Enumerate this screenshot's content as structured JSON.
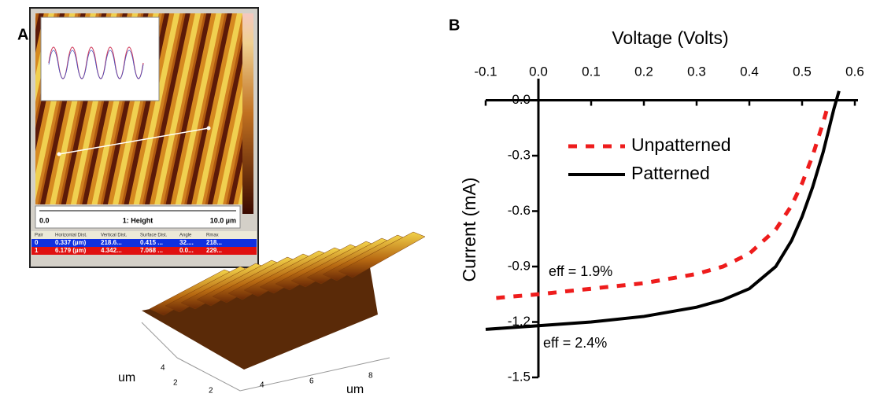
{
  "panels": {
    "a_label": "A",
    "b_label": "B"
  },
  "afm": {
    "scale_start": "0.0",
    "channel": "1: Height",
    "scale_end": "10.0 µm",
    "table": {
      "header": [
        "Pair",
        "Horizontal Dist.",
        "Vertical Dist.",
        "Surface Dist.",
        "Angle",
        "Rmax"
      ],
      "rows": [
        [
          "0",
          "0.337 (µm)",
          "218.6...",
          "0.415 ...",
          "32....",
          "218..."
        ],
        [
          "1",
          "6.179 (µm)",
          "4.342...",
          "7.068 ...",
          "0.0...",
          "229..."
        ]
      ]
    }
  },
  "surface_3d": {
    "y_unit": "um",
    "x_unit": "um",
    "x_ticks": [
      "2",
      "4",
      "6",
      "8"
    ],
    "y_ticks": [
      "4",
      "2"
    ]
  },
  "chart_data": {
    "type": "line",
    "x_label": "Voltage (Volts)",
    "y_label": "Current (mA)",
    "x_axis_position": "top",
    "xlim": [
      -0.1,
      0.6
    ],
    "ylim": [
      -1.5,
      0.1
    ],
    "xticks": [
      -0.1,
      {
        "value": 0,
        "label": "0.0"
      },
      0.1,
      0.2,
      0.3,
      0.4,
      0.5,
      0.6
    ],
    "yticks": [
      {
        "value": 0,
        "label": "0.0"
      },
      -0.3,
      -0.6,
      -0.9,
      -1.2,
      -1.5
    ],
    "legend": "upper-center",
    "series": [
      {
        "name": "Unpatterned",
        "color": "#ee1c1c",
        "dashed": true,
        "x": [
          -0.08,
          0,
          0.1,
          0.2,
          0.3,
          0.35,
          0.4,
          0.45,
          0.48,
          0.5,
          0.52,
          0.54,
          0.55
        ],
        "values": [
          -1.07,
          -1.05,
          -1.02,
          -0.99,
          -0.94,
          -0.9,
          -0.83,
          -0.7,
          -0.57,
          -0.45,
          -0.3,
          -0.12,
          -0.02
        ]
      },
      {
        "name": "Patterned",
        "color": "#000000",
        "dashed": false,
        "x": [
          -0.1,
          0,
          0.1,
          0.2,
          0.3,
          0.35,
          0.4,
          0.45,
          0.48,
          0.5,
          0.52,
          0.54,
          0.56,
          0.57
        ],
        "values": [
          -1.24,
          -1.22,
          -1.2,
          -1.17,
          -1.12,
          -1.08,
          -1.02,
          -0.9,
          -0.76,
          -0.63,
          -0.47,
          -0.28,
          -0.05,
          0.05
        ]
      }
    ],
    "annotations": [
      "eff = 1.9%",
      "eff = 2.4%"
    ]
  }
}
